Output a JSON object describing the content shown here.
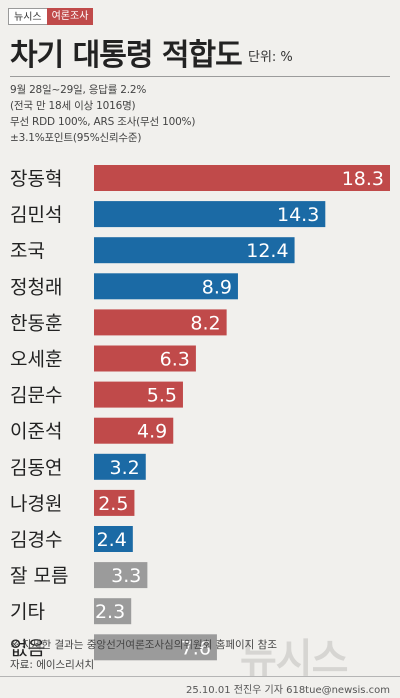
{
  "header": {
    "brand": "뉴시스",
    "category": "여론조사",
    "title": "차기 대통령 적합도",
    "unit": "단위: %"
  },
  "survey_info": [
    "9월 28일~29일, 응답률 2.2%",
    "(전국 만 18세 이상 1016명)",
    "무선 RDD 100%, ARS 조사(무선 100%)",
    "±3.1%포인트(95%신뢰수준)"
  ],
  "colors": {
    "red": "#c04a4a",
    "blue": "#1b6aa5",
    "gray": "#9b9b9b"
  },
  "chart_data": {
    "type": "bar",
    "orientation": "horizontal",
    "categories": [
      "장동혁",
      "김민석",
      "조국",
      "정청래",
      "한동훈",
      "오세훈",
      "김문수",
      "이준석",
      "김동연",
      "나경원",
      "김경수",
      "잘 모름",
      "기타",
      "없음"
    ],
    "values": [
      18.3,
      14.3,
      12.4,
      8.9,
      8.2,
      6.3,
      5.5,
      4.9,
      3.2,
      2.5,
      2.4,
      3.3,
      2.3,
      7.6
    ],
    "value_labels": [
      "18.3",
      "14.3",
      "12.4",
      "8.9",
      "8.2",
      "6.3",
      "5.5",
      "4.9",
      "3.2",
      "2.5",
      "2.4",
      "3.3",
      "2.3",
      "7.6"
    ],
    "bar_colors": [
      "red",
      "blue",
      "blue",
      "blue",
      "red",
      "red",
      "red",
      "red",
      "blue",
      "red",
      "blue",
      "gray",
      "gray",
      "gray"
    ],
    "xlim": [
      0,
      18.3
    ],
    "grid": false,
    "legend": "none"
  },
  "footer": {
    "note": "※ 자세한 결과는 중앙선거여론조사심의위원회 홈페이지 참조",
    "source": "자료: 에이스리서치",
    "credit": "25.10.01 전진우 기자 618tue@newsis.com",
    "watermark": "뉴시스"
  }
}
